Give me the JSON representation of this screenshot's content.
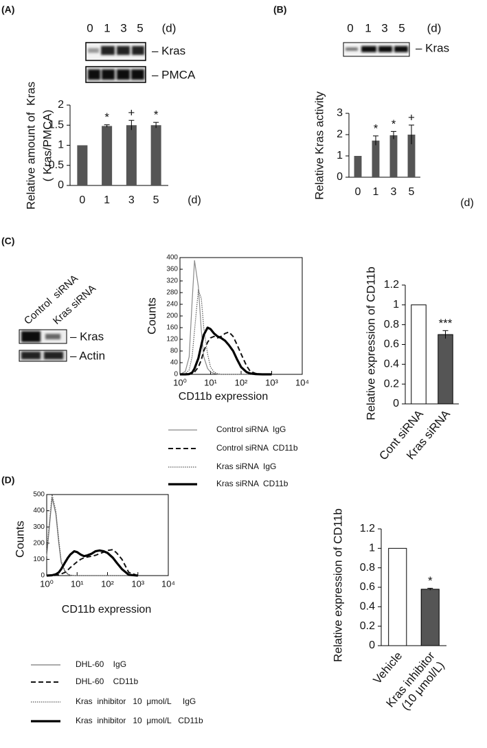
{
  "panel_labels": [
    "(A)",
    "(B)",
    "(C)",
    "(D)"
  ],
  "blots": [
    {
      "lanes": [
        "0",
        "1",
        "3",
        "5"
      ],
      "unit": "(d)",
      "bands": [
        "– Kras",
        "– PMCA"
      ]
    },
    {
      "lanes": [
        "0",
        "1",
        "3",
        "5"
      ],
      "unit": "(d)",
      "bands": [
        "– Kras"
      ]
    },
    {
      "lanes": [
        "Control  siRNA",
        "Kras siRNA"
      ],
      "bands": [
        "– Kras",
        "– Actin"
      ]
    }
  ],
  "chart_data": [
    {
      "type": "bar",
      "y_label": [
        "Relative amount of  Kras",
        "( Kras/PMCA)"
      ],
      "x_unit": "(d)",
      "categories": [
        "0",
        "1",
        "3",
        "5"
      ],
      "values": [
        1,
        1.48,
        1.5,
        1.5
      ],
      "errors": [
        0,
        0.03,
        0.12,
        0.07
      ],
      "value_annotations": [
        null,
        "*",
        "+",
        "*"
      ],
      "color": "#555555",
      "ylim": [
        0,
        2
      ],
      "yticks": [
        0,
        0.5,
        1,
        1.5,
        2
      ]
    },
    {
      "type": "bar",
      "y_label": [
        "Relative Kras activity"
      ],
      "x_unit": "(d)",
      "categories": [
        "0",
        "1",
        "3",
        "5"
      ],
      "values": [
        1,
        1.72,
        1.97,
        2.0
      ],
      "errors": [
        0,
        0.22,
        0.18,
        0.45
      ],
      "value_annotations": [
        null,
        "*",
        "*",
        "+"
      ],
      "color": "#555555",
      "ylim": [
        0,
        3
      ],
      "yticks": [
        0,
        1,
        2,
        3
      ]
    },
    {
      "type": "line",
      "x_label": "CD11b expression",
      "y_label": "Counts",
      "xscale": "log",
      "x": [
        1,
        1.5,
        2,
        2.5,
        3,
        4,
        5,
        6,
        8,
        10,
        13,
        17,
        22,
        30,
        40,
        55,
        75,
        100,
        150,
        200,
        300,
        500,
        1000
      ],
      "series": [
        {
          "name": "Control siRNA  IgG",
          "color": "#888888",
          "line_style": "solid",
          "line_width": 1.2,
          "values": [
            0,
            10,
            60,
            250,
            390,
            300,
            150,
            60,
            20,
            8,
            3,
            1,
            0,
            0,
            0,
            0,
            0,
            0,
            0,
            0,
            0,
            0,
            0
          ]
        },
        {
          "name": "Control siRNA  CD11b",
          "color": "#111111",
          "line_style": "dash",
          "line_width": 2,
          "values": [
            0,
            0,
            0,
            3,
            8,
            25,
            50,
            80,
            110,
            125,
            130,
            125,
            130,
            140,
            145,
            130,
            100,
            70,
            30,
            10,
            3,
            0,
            0
          ]
        },
        {
          "name": "Kras siRNA  IgG",
          "color": "#555555",
          "line_style": "dot",
          "line_width": 1.2,
          "values": [
            0,
            2,
            15,
            60,
            150,
            290,
            260,
            160,
            70,
            25,
            8,
            2,
            0,
            0,
            0,
            0,
            0,
            0,
            0,
            0,
            0,
            0,
            0
          ]
        },
        {
          "name": "Kras siRNA  CD11b",
          "color": "#000000",
          "line_style": "solid",
          "line_width": 3.2,
          "values": [
            0,
            0,
            1,
            6,
            20,
            55,
            100,
            135,
            160,
            155,
            140,
            130,
            125,
            115,
            100,
            80,
            50,
            25,
            8,
            3,
            1,
            0,
            0
          ]
        }
      ],
      "xlim": [
        1,
        10000
      ],
      "xticks": [
        {
          "value": 1,
          "label": "10⁰"
        },
        {
          "value": 10,
          "label": "10¹"
        },
        {
          "value": 100,
          "label": "10²"
        },
        {
          "value": 1000,
          "label": "10³"
        },
        {
          "value": 10000,
          "label": "10⁴"
        }
      ],
      "ylim": [
        0,
        400
      ],
      "yticks": [
        0,
        40,
        80,
        120,
        160,
        200,
        240,
        280,
        320,
        360,
        400
      ]
    },
    {
      "type": "bar",
      "y_label": [
        "Relative expression of CD11b"
      ],
      "categories": [
        "Cont siRNA",
        "Kras siRNA"
      ],
      "values": [
        1,
        0.7
      ],
      "errors": [
        0,
        0.04
      ],
      "value_annotations": [
        null,
        "***"
      ],
      "colors": [
        "#ffffff",
        "#555555"
      ],
      "ylim": [
        0,
        1.2
      ],
      "yticks": [
        0,
        0.2,
        0.4,
        0.6,
        0.8,
        1,
        1.2
      ]
    },
    {
      "type": "line",
      "x_label": "CD11b expression",
      "y_label": "Counts",
      "xscale": "log",
      "x": [
        1,
        1.5,
        2,
        2.5,
        3,
        4,
        5,
        6,
        8,
        10,
        13,
        17,
        22,
        30,
        40,
        55,
        75,
        100,
        150,
        200,
        300,
        500,
        1000
      ],
      "series": [
        {
          "name": "DHL-60    IgG",
          "color": "#777777",
          "line_style": "solid",
          "line_width": 1.2,
          "values": [
            120,
            480,
            380,
            200,
            80,
            25,
            8,
            2,
            0,
            0,
            0,
            0,
            0,
            0,
            0,
            0,
            0,
            0,
            0,
            0,
            0,
            0,
            0
          ]
        },
        {
          "name": "DHL-60    CD11b",
          "color": "#111111",
          "line_style": "dash",
          "line_width": 2,
          "values": [
            0,
            0,
            2,
            5,
            10,
            20,
            35,
            50,
            70,
            85,
            100,
            110,
            115,
            120,
            125,
            135,
            145,
            155,
            160,
            140,
            100,
            20,
            0
          ]
        },
        {
          "name": "Kras  inhibitor   10  μmol/L     IgG",
          "color": "#555555",
          "line_style": "dot",
          "line_width": 1.2,
          "values": [
            150,
            500,
            400,
            220,
            90,
            30,
            10,
            3,
            0,
            0,
            0,
            0,
            0,
            0,
            0,
            0,
            0,
            0,
            0,
            0,
            0,
            0,
            0
          ]
        },
        {
          "name": "Kras  inhibitor   10  μmol/L   CD11b",
          "color": "#000000",
          "line_style": "solid",
          "line_width": 3.2,
          "values": [
            0,
            2,
            8,
            20,
            40,
            80,
            110,
            130,
            150,
            145,
            130,
            120,
            125,
            135,
            150,
            155,
            150,
            140,
            110,
            80,
            40,
            5,
            0
          ]
        }
      ],
      "xlim": [
        1,
        10000
      ],
      "xticks": [
        {
          "value": 1,
          "label": "10⁰"
        },
        {
          "value": 10,
          "label": "10¹"
        },
        {
          "value": 100,
          "label": "10²"
        },
        {
          "value": 1000,
          "label": "10³"
        },
        {
          "value": 10000,
          "label": "10⁴"
        }
      ],
      "ylim": [
        0,
        500
      ],
      "yticks": [
        0,
        100,
        200,
        300,
        400,
        500
      ]
    },
    {
      "type": "bar",
      "y_label": [
        "Relative expression of CD11b"
      ],
      "categories": [
        [
          "Vehicle"
        ],
        [
          "Kras inhibitor",
          "(10 μmol/L)"
        ]
      ],
      "values": [
        1,
        0.58
      ],
      "errors": [
        0,
        0.01
      ],
      "value_annotations": [
        null,
        "*"
      ],
      "colors": [
        "#ffffff",
        "#555555"
      ],
      "ylim": [
        0,
        1.2
      ],
      "yticks": [
        0,
        0.2,
        0.4,
        0.6,
        0.8,
        1,
        1.2
      ]
    }
  ]
}
